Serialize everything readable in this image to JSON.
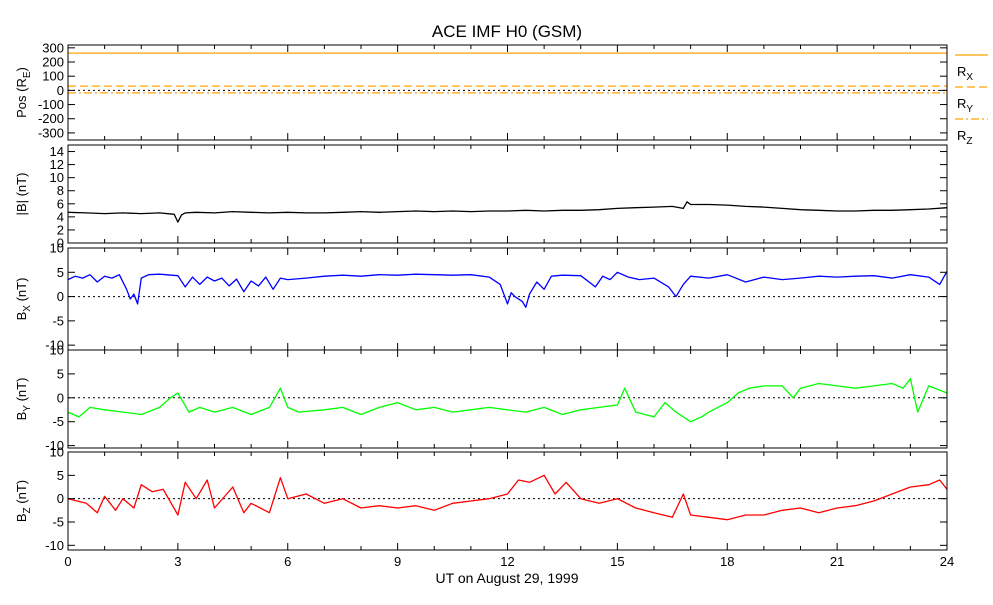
{
  "chart_data": {
    "type": "line",
    "title": "ACE IMF H0 (GSM)",
    "xlabel": "UT on August 29, 1999",
    "xlim": [
      0,
      24
    ],
    "x_ticks": [
      "0",
      "3",
      "6",
      "9",
      "12",
      "15",
      "18",
      "21",
      "24"
    ],
    "panels": [
      {
        "id": "pos",
        "ylabel": "Pos (RE)",
        "ylabel_main": "Pos (R",
        "ylabel_sub": "E",
        "ylabel_end": ")",
        "ylim": [
          -350,
          320
        ],
        "y_ticks": [
          "300",
          "200",
          "100",
          "0",
          "-100",
          "-200",
          "-300"
        ],
        "zero_line": true,
        "legend": [
          {
            "base": "R",
            "sub": "X",
            "line": "solid",
            "color": "#ffa500"
          },
          {
            "base": "R",
            "sub": "Y",
            "line": "dashed",
            "color": "#ffa500"
          },
          {
            "base": "R",
            "sub": "Z",
            "line": "dashdot",
            "color": "#ffa500"
          }
        ],
        "series": [
          {
            "name": "RX",
            "color": "#ffa500",
            "dash": "solid",
            "x": [
              0,
              24
            ],
            "y": [
              263,
              263
            ]
          },
          {
            "name": "RY",
            "color": "#ffa500",
            "dash": "dashed",
            "x": [
              0,
              24
            ],
            "y": [
              30,
              30
            ]
          },
          {
            "name": "RZ",
            "color": "#ffa500",
            "dash": "dashdot",
            "x": [
              0,
              24
            ],
            "y": [
              -18,
              -18
            ]
          }
        ]
      },
      {
        "id": "bmag",
        "ylabel": "|B| (nT)",
        "ylabel_main": "|B| (nT)",
        "ylim": [
          0,
          15
        ],
        "y_ticks": [
          "14",
          "12",
          "10",
          "8",
          "6",
          "4",
          "2",
          "0"
        ],
        "zero_line": false,
        "series": [
          {
            "name": "|B|",
            "color": "#000000",
            "x": [
              0,
              0.5,
              1,
              1.5,
              2,
              2.5,
              2.9,
              3.0,
              3.1,
              3.2,
              3.5,
              4,
              4.5,
              5,
              5.5,
              6,
              6.5,
              7,
              7.5,
              8,
              8.5,
              9,
              9.5,
              10,
              10.5,
              11,
              11.5,
              12,
              12.5,
              13,
              13.5,
              14,
              14.5,
              15,
              15.5,
              16,
              16.5,
              16.8,
              16.9,
              17,
              17.5,
              18,
              18.5,
              19,
              19.5,
              20,
              20.5,
              21,
              21.5,
              22,
              22.5,
              23,
              23.5,
              24
            ],
            "y": [
              4.7,
              4.6,
              4.5,
              4.6,
              4.5,
              4.6,
              4.4,
              3.2,
              4.3,
              4.6,
              4.7,
              4.6,
              4.8,
              4.7,
              4.6,
              4.7,
              4.6,
              4.6,
              4.7,
              4.8,
              4.7,
              4.8,
              4.9,
              4.8,
              4.9,
              4.8,
              4.9,
              4.9,
              5.0,
              4.9,
              5.0,
              5.0,
              5.1,
              5.3,
              5.4,
              5.5,
              5.6,
              5.3,
              6.3,
              5.9,
              5.9,
              5.8,
              5.6,
              5.5,
              5.3,
              5.1,
              5.0,
              4.9,
              4.9,
              5.0,
              5.0,
              5.1,
              5.2,
              5.4
            ]
          }
        ]
      },
      {
        "id": "bx",
        "ylabel": "BX (nT)",
        "ylabel_main": "B",
        "ylabel_sub": "X",
        "ylabel_end": " (nT)",
        "ylim": [
          -11,
          10
        ],
        "y_ticks": [
          "10",
          "5",
          "0",
          "-5",
          "-10"
        ],
        "zero_line": true,
        "series": [
          {
            "name": "BX",
            "color": "#0000ff",
            "x": [
              0,
              0.2,
              0.4,
              0.6,
              0.8,
              1,
              1.2,
              1.4,
              1.6,
              1.7,
              1.8,
              1.9,
              2,
              2.2,
              2.5,
              3,
              3.2,
              3.4,
              3.6,
              3.8,
              4,
              4.2,
              4.4,
              4.6,
              4.8,
              5,
              5.2,
              5.4,
              5.6,
              5.8,
              6,
              6.5,
              7,
              7.5,
              8,
              8.5,
              9,
              9.5,
              10,
              10.5,
              11,
              11.5,
              11.8,
              12,
              12.1,
              12.2,
              12.4,
              12.5,
              12.6,
              12.8,
              13,
              13.2,
              13.5,
              14,
              14.4,
              14.6,
              14.8,
              15,
              15.3,
              15.6,
              16,
              16.4,
              16.6,
              16.8,
              17,
              17.5,
              18,
              18.5,
              19,
              19.5,
              20,
              20.5,
              21,
              21.5,
              22,
              22.5,
              23,
              23.5,
              23.8,
              24
            ],
            "y": [
              3.5,
              4.2,
              3.8,
              4.5,
              3.0,
              4.2,
              3.8,
              4.5,
              1.5,
              -0.5,
              0.5,
              -1.5,
              3.8,
              4.5,
              4.6,
              4.3,
              2.0,
              4.0,
              2.5,
              4.0,
              3.2,
              3.8,
              2.2,
              3.6,
              1.0,
              3.2,
              2.2,
              4.0,
              1.5,
              3.8,
              3.5,
              3.8,
              4.2,
              4.4,
              4.2,
              4.5,
              4.4,
              4.6,
              4.5,
              4.4,
              4.5,
              4.0,
              2.5,
              -1.5,
              0.8,
              0.0,
              -1.0,
              -2.2,
              0.5,
              3.0,
              1.5,
              4.2,
              4.4,
              4.3,
              2.0,
              4.2,
              3.5,
              5.0,
              4.0,
              3.5,
              3.8,
              2.0,
              0.0,
              2.5,
              4.2,
              3.8,
              4.5,
              3.0,
              4.0,
              3.5,
              3.8,
              4.2,
              4.0,
              4.2,
              4.3,
              3.8,
              4.5,
              4.0,
              2.5,
              5.2
            ]
          }
        ]
      },
      {
        "id": "by",
        "ylabel": "BY (nT)",
        "ylabel_main": "B",
        "ylabel_sub": "Y",
        "ylabel_end": " (nT)",
        "ylim": [
          -10.5,
          10
        ],
        "y_ticks": [
          "10",
          "5",
          "0",
          "-5",
          "-10"
        ],
        "zero_line": true,
        "series": [
          {
            "name": "BY",
            "color": "#00ff00",
            "x": [
              0,
              0.3,
              0.6,
              1,
              1.5,
              2,
              2.5,
              2.8,
              3,
              3.3,
              3.6,
              4,
              4.5,
              5,
              5.5,
              5.8,
              6,
              6.3,
              7,
              7.5,
              8,
              8.5,
              9,
              9.5,
              10,
              10.5,
              11,
              11.5,
              12,
              12.5,
              13,
              13.5,
              14,
              14.5,
              15,
              15.2,
              15.5,
              16,
              16.3,
              16.6,
              17,
              17.3,
              17.5,
              18,
              18.3,
              18.6,
              19,
              19.5,
              19.8,
              20,
              20.5,
              21,
              21.5,
              22,
              22.5,
              22.8,
              23,
              23.2,
              23.5,
              24
            ],
            "y": [
              -3,
              -4,
              -2,
              -2.5,
              -3,
              -3.5,
              -2,
              0,
              1,
              -3,
              -2,
              -3,
              -2,
              -3.5,
              -2,
              2,
              -2,
              -3,
              -2.5,
              -2,
              -3.5,
              -2,
              -1,
              -2.5,
              -2,
              -3,
              -2.5,
              -2,
              -2.5,
              -3,
              -2,
              -3.5,
              -2.5,
              -2,
              -1.5,
              2,
              -3,
              -4,
              -1,
              -3,
              -5,
              -4,
              -3,
              -1,
              1,
              2,
              2.5,
              2.5,
              0,
              2,
              3,
              2.5,
              2,
              2.5,
              3,
              2,
              4,
              -3,
              2.5,
              1
            ]
          }
        ]
      },
      {
        "id": "bz",
        "ylabel": "BZ (nT)",
        "ylabel_main": "B",
        "ylabel_sub": "Z",
        "ylabel_end": " (nT)",
        "ylim": [
          -11,
          10
        ],
        "y_ticks": [
          "10",
          "5",
          "0",
          "-5",
          "-10"
        ],
        "zero_line": true,
        "series": [
          {
            "name": "BZ",
            "color": "#ff0000",
            "x": [
              0,
              0.5,
              0.8,
              1,
              1.3,
              1.5,
              1.8,
              2,
              2.3,
              2.6,
              3,
              3.2,
              3.5,
              3.8,
              4,
              4.5,
              4.8,
              5,
              5.5,
              5.8,
              6,
              6.5,
              7,
              7.5,
              8,
              8.5,
              9,
              9.5,
              10,
              10.5,
              11,
              11.5,
              12,
              12.3,
              12.6,
              13,
              13.3,
              13.6,
              14,
              14.5,
              15,
              15.5,
              16,
              16.5,
              16.8,
              17,
              17.5,
              18,
              18.5,
              19,
              19.5,
              20,
              20.5,
              21,
              21.5,
              22,
              22.5,
              23,
              23.5,
              23.8,
              24
            ],
            "y": [
              0,
              -1,
              -3,
              0.5,
              -2.5,
              0,
              -2,
              3,
              1.5,
              2,
              -3.5,
              3.5,
              0,
              4,
              -2,
              2.5,
              -3,
              -1,
              -3,
              4.5,
              0,
              1,
              -1,
              0,
              -2,
              -1.5,
              -2,
              -1.5,
              -2.5,
              -1,
              -0.5,
              0,
              1,
              4,
              3.5,
              5,
              1,
              3.5,
              0,
              -1,
              0,
              -2,
              -3,
              -4,
              1,
              -3.5,
              -4,
              -4.5,
              -3.5,
              -3.5,
              -2.5,
              -2,
              -3,
              -2,
              -1.5,
              -0.5,
              1,
              2.5,
              3,
              4,
              2
            ]
          }
        ]
      }
    ]
  }
}
